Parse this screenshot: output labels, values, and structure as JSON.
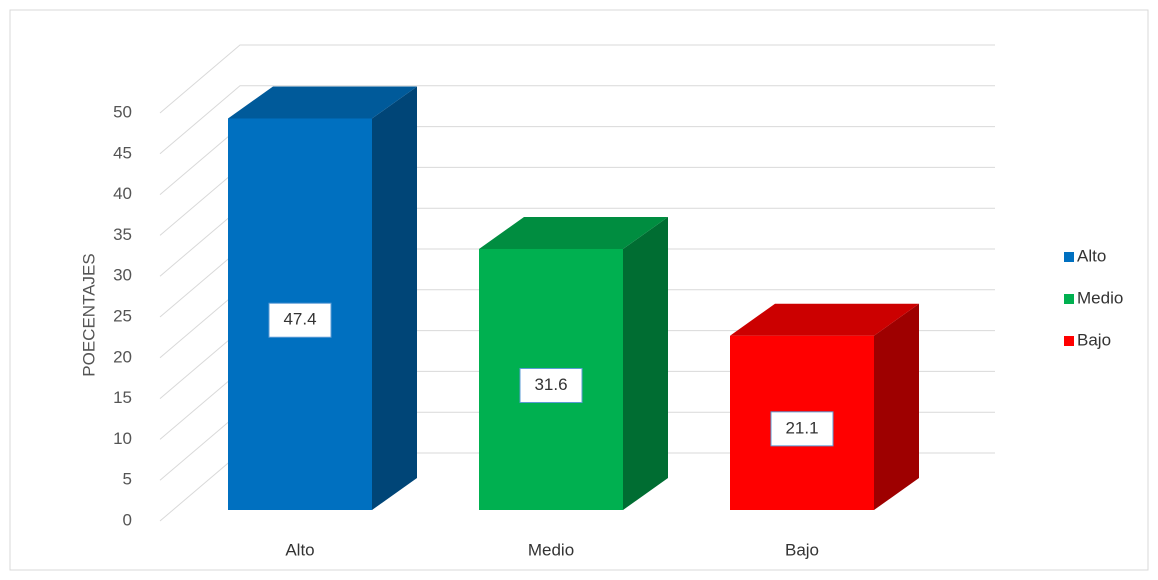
{
  "chart_data": {
    "type": "bar3d",
    "y_label": "POECENTAJES",
    "categories": [
      "Alto",
      "Medio",
      "Bajo"
    ],
    "values": [
      47.4,
      31.6,
      21.1
    ],
    "colors": [
      "#0070c0",
      "#00b050",
      "#ff0000"
    ],
    "ylim": [
      0,
      50
    ],
    "yticks": [
      0,
      5,
      10,
      15,
      20,
      25,
      30,
      35,
      40,
      45,
      50
    ],
    "grid": true,
    "legend": "right",
    "data_labels": true
  }
}
